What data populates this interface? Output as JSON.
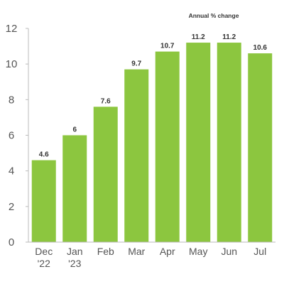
{
  "chart_data": {
    "type": "bar",
    "subtitle": "Annual % change",
    "categories": [
      [
        "Dec",
        "'22"
      ],
      [
        "Jan",
        "'23"
      ],
      [
        "Feb"
      ],
      [
        "Mar"
      ],
      [
        "Apr"
      ],
      [
        "May"
      ],
      [
        "Jun"
      ],
      [
        "Jul"
      ]
    ],
    "values": [
      4.6,
      6,
      7.6,
      9.7,
      10.7,
      11.2,
      11.2,
      10.6
    ],
    "value_labels": [
      "4.6",
      "6",
      "7.6",
      "9.7",
      "10.7",
      "11.2",
      "11.2",
      "10.6"
    ],
    "ylim": [
      0,
      12
    ],
    "yticks": [
      0,
      2,
      4,
      6,
      8,
      10,
      12
    ],
    "grid": false,
    "bar_color": "#8cc63f",
    "axis_color": "#bbbbbb"
  }
}
